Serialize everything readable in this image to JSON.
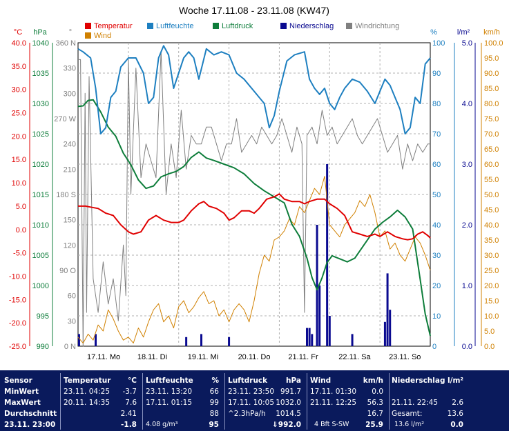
{
  "chart_data": {
    "type": "line",
    "title": "Woche 17.11.08 - 23.11.08 (KW47)",
    "x_labels": [
      "17.11. Mo",
      "18.11. Di",
      "19.11. Mi",
      "20.11. Do",
      "21.11. Fr",
      "22.11. Sa",
      "23.11. So"
    ],
    "legend": [
      {
        "name": "Temperatur",
        "color": "#e00000"
      },
      {
        "name": "Luftfeuchte",
        "color": "#1d7fc0"
      },
      {
        "name": "Luftdruck",
        "color": "#0d7d3a"
      },
      {
        "name": "Niederschlag",
        "color": "#0a0a90"
      },
      {
        "name": "Windrichtung",
        "color": "#808080"
      },
      {
        "name": "Wind",
        "color": "#d08000"
      }
    ],
    "axes": {
      "temp": {
        "unit": "°C",
        "ticks": [
          "40.0",
          "35.0",
          "30.0",
          "25.0",
          "20.0",
          "15.0",
          "10.0",
          "5.0",
          "0.0",
          "-5.0",
          "-10.0",
          "-15.0",
          "-20.0",
          "-25.0"
        ],
        "color": "#e00000"
      },
      "pressure": {
        "unit": "hPa",
        "ticks": [
          "1040",
          "1035",
          "1030",
          "1025",
          "1020",
          "1015",
          "1010",
          "1005",
          "1000",
          "995",
          "990"
        ],
        "color": "#0d7d3a"
      },
      "direction": {
        "unit": "°",
        "ticks": [
          "360 N",
          "330",
          "300",
          "270 W",
          "240",
          "210",
          "180 S",
          "150",
          "120",
          "90 O",
          "60",
          "30",
          "0 N"
        ],
        "color": "#808080"
      },
      "humidity": {
        "unit": "%",
        "ticks": [
          "100",
          "90",
          "80",
          "70",
          "60",
          "50",
          "40",
          "30",
          "20",
          "10",
          "0"
        ],
        "color": "#1d7fc0"
      },
      "rain": {
        "unit": "l/m²",
        "ticks": [
          "5.0",
          "4.0",
          "3.0",
          "2.0",
          "1.0",
          "0.0"
        ],
        "color": "#0a0a90"
      },
      "wind": {
        "unit": "km/h",
        "ticks": [
          "100.0",
          "95.0",
          "90.0",
          "85.0",
          "80.0",
          "75.0",
          "70.0",
          "65.0",
          "60.0",
          "55.0",
          "50.0",
          "45.0",
          "40.0",
          "35.0",
          "30.0",
          "25.0",
          "20.0",
          "15.0",
          "10.0",
          "5.0",
          "0.0"
        ],
        "color": "#d08000"
      }
    },
    "series": [
      {
        "name": "Temperatur",
        "axis": "temp",
        "x": [
          0,
          0.15,
          0.25,
          0.4,
          0.55,
          0.7,
          0.85,
          1.0,
          1.1,
          1.25,
          1.4,
          1.55,
          1.7,
          1.85,
          2.0,
          2.1,
          2.25,
          2.4,
          2.5,
          2.6,
          2.75,
          2.9,
          3.0,
          3.1,
          3.25,
          3.4,
          3.5,
          3.6,
          3.75,
          3.9,
          4.0,
          4.1,
          4.25,
          4.4,
          4.5,
          4.6,
          4.75,
          4.9,
          5.0,
          5.15,
          5.3,
          5.45,
          5.6,
          5.75,
          5.9,
          6.0,
          6.15,
          6.3,
          6.45,
          6.55,
          6.65,
          6.75,
          6.85,
          6.95,
          7.0
        ],
        "y": [
          5,
          5,
          4.8,
          4.5,
          3.5,
          3,
          1,
          -0.5,
          -1,
          -0.5,
          2,
          3,
          2,
          1.5,
          1.5,
          2,
          4,
          5.5,
          6,
          5,
          4.5,
          3.5,
          2,
          2.5,
          4,
          4,
          3.5,
          4.5,
          6.5,
          7,
          7.6,
          6.5,
          6,
          6,
          5.5,
          6,
          6.5,
          6.5,
          5.5,
          4.5,
          3,
          -0.5,
          -1,
          -1.5,
          -1,
          -1.5,
          -0.5,
          -1.5,
          -2,
          -2.2,
          -2,
          -1,
          -0.5,
          -1.3,
          -1.8
        ]
      },
      {
        "name": "Luftfeuchte",
        "axis": "humidity",
        "x": [
          0,
          0.1,
          0.25,
          0.35,
          0.45,
          0.55,
          0.65,
          0.75,
          0.85,
          1.0,
          1.15,
          1.3,
          1.4,
          1.5,
          1.6,
          1.7,
          1.8,
          1.9,
          2.0,
          2.1,
          2.2,
          2.3,
          2.4,
          2.55,
          2.7,
          2.85,
          3.0,
          3.15,
          3.3,
          3.5,
          3.7,
          3.8,
          3.9,
          4.0,
          4.15,
          4.3,
          4.5,
          4.6,
          4.7,
          4.8,
          4.9,
          5.0,
          5.1,
          5.2,
          5.3,
          5.45,
          5.6,
          5.75,
          5.9,
          6.0,
          6.1,
          6.2,
          6.3,
          6.4,
          6.5,
          6.6,
          6.7,
          6.8,
          6.9,
          7.0
        ],
        "y": [
          98,
          97,
          95,
          85,
          70,
          72,
          82,
          84,
          92,
          95,
          95,
          90,
          80,
          82,
          95,
          99,
          96,
          85,
          90,
          95,
          97,
          95,
          88,
          98,
          96,
          97,
          96,
          90,
          88,
          84,
          80,
          72,
          76,
          84,
          94,
          96,
          97,
          88,
          85,
          83,
          85,
          80,
          78,
          82,
          85,
          88,
          87,
          84,
          80,
          84,
          88,
          86,
          82,
          78,
          70,
          72,
          82,
          80,
          93,
          95
        ]
      },
      {
        "name": "Luftdruck",
        "axis": "pressure",
        "x": [
          0,
          0.1,
          0.2,
          0.3,
          0.45,
          0.6,
          0.75,
          0.9,
          1.05,
          1.2,
          1.35,
          1.5,
          1.65,
          1.8,
          1.95,
          2.1,
          2.25,
          2.4,
          2.55,
          2.7,
          2.9,
          3.1,
          3.3,
          3.5,
          3.7,
          3.9,
          4.1,
          4.25,
          4.4,
          4.55,
          4.65,
          4.75,
          4.85,
          4.95,
          5.05,
          5.2,
          5.35,
          5.5,
          5.7,
          5.9,
          6.05,
          6.2,
          6.35,
          6.5,
          6.65,
          6.8,
          6.9,
          7.0
        ],
        "y": [
          1029.5,
          1029.6,
          1030.5,
          1030.6,
          1028.6,
          1026.1,
          1024.6,
          1021.8,
          1019.9,
          1017.4,
          1016.0,
          1016.4,
          1017.9,
          1018.4,
          1018.8,
          1019.6,
          1021.1,
          1022.0,
          1021.0,
          1020.6,
          1020.0,
          1019.4,
          1018.4,
          1016.8,
          1015.6,
          1014.6,
          1013.6,
          1010.1,
          1008.1,
          1004.5,
          1001.3,
          999.3,
          1001.3,
          1003.8,
          1004.9,
          1004.4,
          1003.9,
          1004.5,
          1006.9,
          1009.3,
          1010.4,
          1011.3,
          1012.4,
          1011.3,
          1009.3,
          1001.0,
          995.3,
          991.7
        ]
      },
      {
        "name": "Windrichtung",
        "axis": "direction",
        "x": [
          0,
          0.05,
          0.1,
          0.14,
          0.17,
          0.22,
          0.3,
          0.4,
          0.5,
          0.6,
          0.7,
          0.8,
          0.9,
          0.95,
          1.0,
          1.05,
          1.15,
          1.25,
          1.35,
          1.45,
          1.55,
          1.65,
          1.75,
          1.85,
          1.95,
          2.05,
          2.15,
          2.25,
          2.35,
          2.45,
          2.55,
          2.65,
          2.75,
          2.85,
          2.95,
          3.05,
          3.15,
          3.25,
          3.35,
          3.45,
          3.55,
          3.65,
          3.75,
          3.85,
          3.95,
          4.05,
          4.15,
          4.25,
          4.35,
          4.45,
          4.5,
          4.55,
          4.65,
          4.75,
          4.85,
          4.95,
          5.05,
          5.15,
          5.25,
          5.35,
          5.45,
          5.55,
          5.65,
          5.75,
          5.85,
          5.95,
          6.05,
          6.15,
          6.25,
          6.35,
          6.45,
          6.55,
          6.65,
          6.75,
          6.85,
          6.95,
          7.0
        ],
        "y": [
          340,
          340,
          0,
          300,
          40,
          320,
          80,
          40,
          100,
          50,
          80,
          30,
          120,
          60,
          340,
          180,
          330,
          200,
          240,
          220,
          200,
          350,
          180,
          240,
          200,
          280,
          210,
          250,
          240,
          240,
          260,
          260,
          240,
          220,
          240,
          240,
          270,
          230,
          240,
          250,
          240,
          260,
          250,
          240,
          250,
          270,
          250,
          230,
          260,
          240,
          40,
          250,
          260,
          240,
          280,
          250,
          260,
          240,
          250,
          260,
          270,
          250,
          240,
          250,
          260,
          270,
          250,
          230,
          240,
          250,
          210,
          240,
          220,
          240,
          230,
          240,
          240
        ]
      },
      {
        "name": "Wind",
        "axis": "wind",
        "x": [
          0,
          0.1,
          0.2,
          0.3,
          0.4,
          0.5,
          0.6,
          0.7,
          0.8,
          0.9,
          1.0,
          1.1,
          1.2,
          1.3,
          1.4,
          1.5,
          1.6,
          1.7,
          1.8,
          1.9,
          2.0,
          2.1,
          2.2,
          2.3,
          2.4,
          2.5,
          2.6,
          2.7,
          2.8,
          2.9,
          3.0,
          3.1,
          3.2,
          3.3,
          3.4,
          3.5,
          3.6,
          3.7,
          3.8,
          3.9,
          4.0,
          4.1,
          4.2,
          4.3,
          4.4,
          4.5,
          4.6,
          4.7,
          4.8,
          4.9,
          5.0,
          5.1,
          5.2,
          5.3,
          5.4,
          5.5,
          5.6,
          5.7,
          5.8,
          5.9,
          6.0,
          6.1,
          6.2,
          6.3,
          6.4,
          6.5,
          6.6,
          6.7,
          6.8,
          6.9,
          7.0
        ],
        "y": [
          3,
          1,
          4,
          2,
          7,
          5,
          12,
          9,
          5,
          2,
          3,
          1,
          6,
          3,
          8,
          12,
          14,
          8,
          10,
          6,
          13,
          15,
          11,
          13,
          16,
          18,
          14,
          15,
          10,
          12,
          8,
          12,
          14,
          12,
          8,
          15,
          24,
          30,
          28,
          35,
          36,
          38,
          42,
          40,
          46,
          44,
          48,
          52,
          50,
          56,
          40,
          38,
          36,
          40,
          42,
          44,
          48,
          46,
          50,
          44,
          36,
          38,
          32,
          34,
          30,
          28,
          32,
          36,
          34,
          30,
          25
        ]
      }
    ],
    "rain_bars": {
      "x": [
        0.02,
        0.35,
        2.15,
        2.45,
        3.0,
        4.55,
        4.6,
        4.65,
        4.75,
        4.8,
        4.95,
        5.0,
        5.45,
        6.1,
        6.15,
        6.2
      ],
      "y": [
        0.2,
        0.2,
        0.15,
        0.2,
        0.15,
        0.3,
        0.3,
        0.2,
        2.0,
        1.0,
        3.0,
        0.5,
        0.2,
        0.4,
        1.2,
        0.6
      ]
    }
  },
  "stats": {
    "headers": {
      "sensor": "Sensor",
      "temp": "Temperatur",
      "temp_unit": "°C",
      "hum": "Luftfeuchte",
      "hum_unit": "%",
      "press": "Luftdruck",
      "press_unit": "hPa",
      "wind": "Wind",
      "wind_unit": "km/h",
      "rain": "Niederschlag",
      "rain_unit": "l/m²"
    },
    "labels": {
      "min": "MinWert",
      "max": "MaxWert",
      "avg": "Durchschnitt",
      "now": "23.11. 23:00"
    },
    "temp": {
      "min_time": "23.11. 04:25",
      "min": "-3.7",
      "max_time": "20.11. 14:35",
      "max": "7.6",
      "avg": "2.41",
      "now": "-1.8"
    },
    "hum": {
      "min_time": "23.11. 13:20",
      "min": "66",
      "max_time": "17.11. 01:15",
      "max": "99",
      "avg": "88",
      "now_extra": "4.08 g/m³",
      "now": "95"
    },
    "press": {
      "min_time": "23.11. 23:50",
      "min": "991.7",
      "max_time": "17.11. 10:05",
      "max": "1032.0",
      "avg_label": "^2.3hPa/h",
      "avg": "1014.5",
      "now": "992.0",
      "trend_arrow": "⇓"
    },
    "wind": {
      "min_time": "17.11. 01:30",
      "min": "0.0",
      "max_time": "21.11. 12:25",
      "max": "56.3",
      "avg": "16.7",
      "now_extra": "4 Bft S-SW",
      "now": "25.9"
    },
    "rain": {
      "max_time": "21.11. 22:45",
      "max": "2.6",
      "total_label": "Gesamt:",
      "total": "13.6",
      "now_extra": "13.6 l/m²",
      "now": "0.0"
    }
  }
}
